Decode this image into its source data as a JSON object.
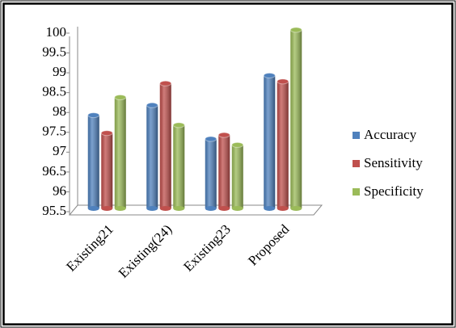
{
  "chart_data": {
    "type": "bar",
    "categories": [
      "Existing21",
      "Existing(24)",
      "Existing23",
      "Proposed"
    ],
    "series": [
      {
        "name": "Accuracy",
        "color": "#4f81bd",
        "values": [
          97.85,
          98.1,
          97.25,
          98.85
        ]
      },
      {
        "name": "Sensitivity",
        "color": "#c0504d",
        "values": [
          97.4,
          98.65,
          97.35,
          98.7
        ]
      },
      {
        "name": "Specificity",
        "color": "#9bbb59",
        "values": [
          98.3,
          97.6,
          97.1,
          100
        ]
      }
    ],
    "ylim": [
      95.5,
      100
    ],
    "yticks": [
      95.5,
      96,
      96.5,
      97,
      97.5,
      98,
      98.5,
      99,
      99.5,
      100
    ],
    "grid": false,
    "legend": "right"
  }
}
